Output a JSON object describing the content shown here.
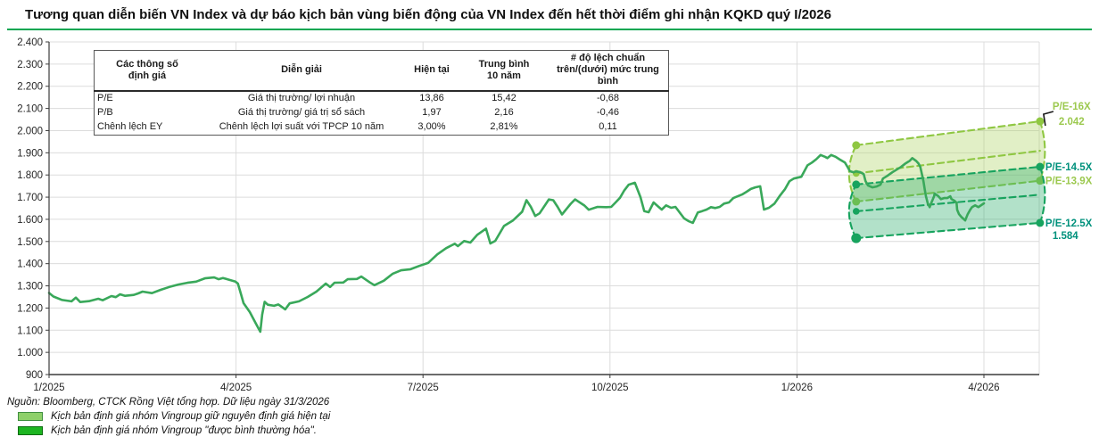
{
  "title": "Tương quan diễn biến VN Index và dự báo kịch bản vùng biến động của VN Index đến hết thời điểm ghi nhận KQKD quý I/2026",
  "accent_color": "#00a651",
  "table": {
    "headers": [
      "Các thông số\nđịnh giá",
      "Diễn  giải",
      "Hiện tại",
      "Trung bình\n10 năm",
      "# độ lệch chuẩn\ntrên/(dưới) mức trung\nbình"
    ],
    "rows": [
      [
        "P/E",
        "Giá thị trường/ lợi nhuận",
        "13,86",
        "15,42",
        "-0,68"
      ],
      [
        "P/B",
        "Giá thị trường/ giá trị sổ sách",
        "1,97",
        "2,16",
        "-0,46"
      ],
      [
        "Chênh lệch EY",
        "Chênh lệch lợi suất với TPCP 10 năm",
        "3,00%",
        "2,81%",
        "0,11"
      ]
    ]
  },
  "chart_data": {
    "type": "line",
    "title": "VN Index và vùng dự báo",
    "grid": true,
    "ylim": [
      900,
      2400
    ],
    "xlim_months": [
      0,
      15.9
    ],
    "y_ticks": [
      {
        "v": 900,
        "label": "900"
      },
      {
        "v": 1000,
        "label": "1.000"
      },
      {
        "v": 1100,
        "label": "1.100"
      },
      {
        "v": 1200,
        "label": "1.200"
      },
      {
        "v": 1300,
        "label": "1.300"
      },
      {
        "v": 1400,
        "label": "1.400"
      },
      {
        "v": 1500,
        "label": "1.500"
      },
      {
        "v": 1600,
        "label": "1.600"
      },
      {
        "v": 1700,
        "label": "1.700"
      },
      {
        "v": 1800,
        "label": "1.800"
      },
      {
        "v": 1900,
        "label": "1.900"
      },
      {
        "v": 2000,
        "label": "2.000"
      },
      {
        "v": 2100,
        "label": "2.100"
      },
      {
        "v": 2200,
        "label": "2.200"
      },
      {
        "v": 2300,
        "label": "2.300"
      },
      {
        "v": 2400,
        "label": "2.400"
      }
    ],
    "x_ticks": [
      {
        "t": 0,
        "label": "1/2025"
      },
      {
        "t": 3,
        "label": "4/2025"
      },
      {
        "t": 6,
        "label": "7/2025"
      },
      {
        "t": 9,
        "label": "10/2025"
      },
      {
        "t": 12,
        "label": "1/2026"
      },
      {
        "t": 15,
        "label": "4/2026"
      }
    ],
    "series": [
      {
        "name": "VN Index",
        "color": "#39a85a",
        "points": [
          [
            0,
            1268
          ],
          [
            0.07,
            1252
          ],
          [
            0.21,
            1236
          ],
          [
            0.36,
            1230
          ],
          [
            0.43,
            1247
          ],
          [
            0.5,
            1227
          ],
          [
            0.64,
            1231
          ],
          [
            0.79,
            1242
          ],
          [
            0.86,
            1235
          ],
          [
            1,
            1254
          ],
          [
            1.07,
            1249
          ],
          [
            1.14,
            1262
          ],
          [
            1.22,
            1255
          ],
          [
            1.36,
            1259
          ],
          [
            1.43,
            1266
          ],
          [
            1.5,
            1274
          ],
          [
            1.65,
            1267
          ],
          [
            1.79,
            1282
          ],
          [
            1.93,
            1295
          ],
          [
            2.08,
            1306
          ],
          [
            2.22,
            1314
          ],
          [
            2.36,
            1319
          ],
          [
            2.5,
            1334
          ],
          [
            2.65,
            1338
          ],
          [
            2.72,
            1330
          ],
          [
            2.79,
            1335
          ],
          [
            2.86,
            1330
          ],
          [
            2.99,
            1319
          ],
          [
            3.03,
            1310
          ],
          [
            3.08,
            1262
          ],
          [
            3.12,
            1222
          ],
          [
            3.22,
            1182
          ],
          [
            3.32,
            1129
          ],
          [
            3.39,
            1093
          ],
          [
            3.42,
            1170
          ],
          [
            3.46,
            1228
          ],
          [
            3.51,
            1215
          ],
          [
            3.61,
            1210
          ],
          [
            3.68,
            1216
          ],
          [
            3.79,
            1194
          ],
          [
            3.86,
            1221
          ],
          [
            4.01,
            1230
          ],
          [
            4.15,
            1250
          ],
          [
            4.29,
            1274
          ],
          [
            4.44,
            1310
          ],
          [
            4.51,
            1295
          ],
          [
            4.58,
            1314
          ],
          [
            4.72,
            1315
          ],
          [
            4.79,
            1330
          ],
          [
            4.94,
            1331
          ],
          [
            5.01,
            1342
          ],
          [
            5.15,
            1315
          ],
          [
            5.22,
            1303
          ],
          [
            5.37,
            1323
          ],
          [
            5.51,
            1354
          ],
          [
            5.65,
            1370
          ],
          [
            5.8,
            1375
          ],
          [
            5.94,
            1390
          ],
          [
            6.08,
            1403
          ],
          [
            6.23,
            1442
          ],
          [
            6.37,
            1470
          ],
          [
            6.51,
            1490
          ],
          [
            6.56,
            1479
          ],
          [
            6.66,
            1502
          ],
          [
            6.76,
            1495
          ],
          [
            6.87,
            1530
          ],
          [
            7.01,
            1558
          ],
          [
            7.08,
            1491
          ],
          [
            7.16,
            1503
          ],
          [
            7.3,
            1570
          ],
          [
            7.44,
            1594
          ],
          [
            7.59,
            1634
          ],
          [
            7.66,
            1686
          ],
          [
            7.73,
            1656
          ],
          [
            7.8,
            1615
          ],
          [
            7.87,
            1627
          ],
          [
            8.02,
            1690
          ],
          [
            8.09,
            1686
          ],
          [
            8.16,
            1656
          ],
          [
            8.23,
            1622
          ],
          [
            8.37,
            1670
          ],
          [
            8.44,
            1690
          ],
          [
            8.59,
            1662
          ],
          [
            8.66,
            1643
          ],
          [
            8.8,
            1656
          ],
          [
            8.94,
            1655
          ],
          [
            9.02,
            1656
          ],
          [
            9.09,
            1676
          ],
          [
            9.16,
            1697
          ],
          [
            9.23,
            1731
          ],
          [
            9.3,
            1756
          ],
          [
            9.4,
            1765
          ],
          [
            9.49,
            1700
          ],
          [
            9.55,
            1637
          ],
          [
            9.62,
            1632
          ],
          [
            9.7,
            1676
          ],
          [
            9.78,
            1656
          ],
          [
            9.83,
            1644
          ],
          [
            9.9,
            1663
          ],
          [
            9.98,
            1652
          ],
          [
            10.05,
            1656
          ],
          [
            10.19,
            1604
          ],
          [
            10.26,
            1592
          ],
          [
            10.33,
            1584
          ],
          [
            10.41,
            1631
          ],
          [
            10.48,
            1637
          ],
          [
            10.55,
            1644
          ],
          [
            10.62,
            1655
          ],
          [
            10.69,
            1651
          ],
          [
            10.76,
            1656
          ],
          [
            10.83,
            1671
          ],
          [
            10.91,
            1676
          ],
          [
            10.98,
            1696
          ],
          [
            11.05,
            1704
          ],
          [
            11.12,
            1712
          ],
          [
            11.19,
            1724
          ],
          [
            11.26,
            1737
          ],
          [
            11.33,
            1744
          ],
          [
            11.41,
            1749
          ],
          [
            11.47,
            1644
          ],
          [
            11.55,
            1652
          ],
          [
            11.64,
            1671
          ],
          [
            11.72,
            1704
          ],
          [
            11.81,
            1737
          ],
          [
            11.88,
            1772
          ],
          [
            11.95,
            1784
          ],
          [
            12.07,
            1792
          ],
          [
            12.17,
            1844
          ],
          [
            12.24,
            1856
          ],
          [
            12.31,
            1871
          ],
          [
            12.38,
            1890
          ],
          [
            12.45,
            1882
          ],
          [
            12.49,
            1876
          ],
          [
            12.55,
            1890
          ],
          [
            12.62,
            1882
          ],
          [
            12.69,
            1869
          ],
          [
            12.77,
            1856
          ],
          [
            12.81,
            1837
          ],
          [
            12.85,
            1817
          ],
          [
            12.91,
            1812
          ],
          [
            12.95,
            1816
          ],
          [
            13.02,
            1812
          ],
          [
            13.07,
            1804
          ],
          [
            13.1,
            1772
          ],
          [
            13.14,
            1753
          ],
          [
            13.21,
            1744
          ],
          [
            13.28,
            1748
          ],
          [
            13.34,
            1756
          ],
          [
            13.38,
            1784
          ],
          [
            13.45,
            1796
          ],
          [
            13.53,
            1812
          ],
          [
            13.6,
            1824
          ],
          [
            13.67,
            1836
          ],
          [
            13.74,
            1852
          ],
          [
            13.81,
            1864
          ],
          [
            13.85,
            1876
          ],
          [
            13.91,
            1864
          ],
          [
            13.95,
            1852
          ],
          [
            13.98,
            1836
          ],
          [
            14.03,
            1772
          ],
          [
            14.05,
            1736
          ],
          [
            14.07,
            1704
          ],
          [
            14.1,
            1671
          ],
          [
            14.13,
            1655
          ],
          [
            14.14,
            1663
          ],
          [
            14.2,
            1704
          ],
          [
            14.21,
            1716
          ],
          [
            14.27,
            1704
          ],
          [
            14.31,
            1691
          ],
          [
            14.36,
            1696
          ],
          [
            14.41,
            1696
          ],
          [
            14.46,
            1704
          ],
          [
            14.48,
            1691
          ],
          [
            14.53,
            1683
          ],
          [
            14.56,
            1675
          ],
          [
            14.57,
            1643
          ],
          [
            14.6,
            1623
          ],
          [
            14.64,
            1610
          ],
          [
            14.7,
            1595
          ],
          [
            14.74,
            1623
          ],
          [
            14.78,
            1643
          ],
          [
            14.81,
            1655
          ],
          [
            14.86,
            1663
          ],
          [
            14.91,
            1655
          ],
          [
            15.0,
            1672
          ]
        ]
      }
    ],
    "bands": [
      {
        "scenario": "Kịch bản định giá nhóm Vingroup giữ nguyên định giá hiện tại",
        "line_color": "#8fc742",
        "fill": "rgba(176,214,104,0.38)",
        "t_start": 12.95,
        "t_end": 15.9,
        "top": {
          "label": "P/E-16X",
          "start": 1934,
          "end": 2042
        },
        "mid": {
          "start": 1807,
          "end": 1909
        },
        "bottom": {
          "label": "P/E-13,9X",
          "start": 1680,
          "end": 1774
        }
      },
      {
        "scenario": "Kịch bản định giá nhóm Vingroup \"được bình thường hóa\".",
        "line_color": "#17a35e",
        "fill": "rgba(52,175,112,0.38)",
        "t_start": 12.95,
        "t_end": 15.9,
        "top": {
          "label": "P/E-14.5X",
          "start": 1757,
          "end": 1837
        },
        "mid": {
          "start": 1636,
          "end": 1711
        },
        "bottom": {
          "label": "P/E-12.5X",
          "start": 1515,
          "end": 1584
        }
      }
    ],
    "right_labels": [
      {
        "text": "P/E-16X",
        "v": 2042,
        "dy": -13,
        "x_off": 14,
        "color": "#9cc94f"
      },
      {
        "text": "2.042",
        "v": 2042,
        "dy": 4,
        "x_off": 21,
        "color": "#9cc94f"
      },
      {
        "text": "P/E-14.5X",
        "v": 1837,
        "dy": 4,
        "x_off": 6,
        "color": "#00917c"
      },
      {
        "text": "P/E-13,9X",
        "v": 1774,
        "dy": 4,
        "x_off": 6,
        "color": "#9cc94f"
      },
      {
        "text": "P/E-12.5X",
        "v": 1584,
        "dy": 4,
        "x_off": 6,
        "color": "#00917c"
      },
      {
        "text": "1.584",
        "v": 1584,
        "dy": 18,
        "x_off": 14,
        "color": "#00917c"
      }
    ],
    "grid_color": "#dcdcdc",
    "axis_color": "#3c3c3c"
  },
  "footer": {
    "source": "Nguồn: Bloomberg, CTCK Rồng Việt tổng hợp. Dữ liệu ngày 31/3/2026"
  },
  "legend": [
    {
      "label": "Kịch bản định giá nhóm Vingroup giữ nguyên định giá hiện tại",
      "fill": "#8ed06a",
      "border": "#3f8f3e"
    },
    {
      "label": "Kịch bản định giá nhóm Vingroup \"được bình thường hóa\".",
      "fill": "#1db521",
      "border": "#0c6b10"
    }
  ]
}
